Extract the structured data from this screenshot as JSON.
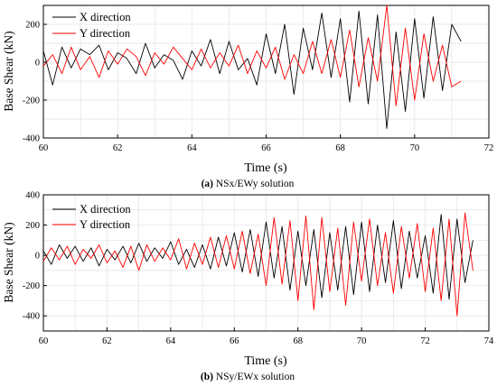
{
  "chart_data": [
    {
      "type": "line",
      "panel_label": "(a)",
      "caption": "NSx/EWy solution",
      "xlabel": "Time (s)",
      "ylabel": "Base Shear (kN)",
      "xlim": [
        60,
        72
      ],
      "ylim": [
        -400,
        300
      ],
      "xticks": [
        60,
        62,
        64,
        66,
        68,
        70,
        72
      ],
      "yticks": [
        -400,
        -200,
        0,
        200
      ],
      "grid": true,
      "legend_position": "top-left",
      "x_range_data": [
        60,
        71.25
      ],
      "series": [
        {
          "name": "X direction",
          "color": "#000000",
          "x": [
            60.0,
            60.25,
            60.5,
            60.75,
            61.0,
            61.25,
            61.5,
            61.75,
            62.0,
            62.25,
            62.5,
            62.75,
            63.0,
            63.25,
            63.5,
            63.75,
            64.0,
            64.25,
            64.5,
            64.75,
            65.0,
            65.25,
            65.5,
            65.75,
            66.0,
            66.25,
            66.5,
            66.75,
            67.0,
            67.25,
            67.5,
            67.75,
            68.0,
            68.25,
            68.5,
            68.75,
            69.0,
            69.25,
            69.5,
            69.75,
            70.0,
            70.25,
            70.5,
            70.75,
            71.0,
            71.25
          ],
          "values": [
            60,
            -120,
            80,
            -30,
            70,
            40,
            90,
            -40,
            50,
            20,
            -60,
            100,
            -30,
            40,
            10,
            -90,
            60,
            -20,
            120,
            -60,
            110,
            -40,
            20,
            -120,
            150,
            -60,
            200,
            -170,
            180,
            -40,
            260,
            -80,
            230,
            -210,
            270,
            -220,
            250,
            -350,
            160,
            -260,
            230,
            -190,
            240,
            -150,
            200,
            110
          ]
        },
        {
          "name": "Y direction",
          "color": "#ff0000",
          "x": [
            60.0,
            60.25,
            60.5,
            60.75,
            61.0,
            61.25,
            61.5,
            61.75,
            62.0,
            62.25,
            62.5,
            62.75,
            63.0,
            63.25,
            63.5,
            63.75,
            64.0,
            64.25,
            64.5,
            64.75,
            65.0,
            65.25,
            65.5,
            65.75,
            66.0,
            66.25,
            66.5,
            66.75,
            67.0,
            67.25,
            67.5,
            67.75,
            68.0,
            68.25,
            68.5,
            68.75,
            69.0,
            69.25,
            69.5,
            69.75,
            70.0,
            70.25,
            70.5,
            70.75,
            71.0,
            71.25
          ],
          "values": [
            -20,
            40,
            -60,
            80,
            -40,
            30,
            -80,
            60,
            -10,
            70,
            30,
            -70,
            50,
            -10,
            80,
            20,
            -40,
            70,
            -30,
            50,
            -20,
            90,
            -60,
            60,
            -30,
            80,
            -90,
            40,
            -60,
            110,
            -60,
            120,
            -80,
            170,
            -130,
            130,
            -100,
            300,
            -230,
            180,
            -200,
            150,
            -100,
            90,
            -130,
            -100
          ]
        }
      ]
    },
    {
      "type": "line",
      "panel_label": "(b)",
      "caption": "NSy/EWx solution",
      "xlabel": "Time (s)",
      "ylabel": "Base Shear (kN)",
      "xlim": [
        60,
        74
      ],
      "ylim": [
        -500,
        400
      ],
      "xticks": [
        60,
        62,
        64,
        66,
        68,
        70,
        72,
        74
      ],
      "yticks": [
        -400,
        -200,
        0,
        200,
        400
      ],
      "grid": true,
      "legend_position": "top-left",
      "x_range_data": [
        60,
        73.5
      ],
      "series": [
        {
          "name": "X direction",
          "color": "#000000",
          "x": [
            60.0,
            60.25,
            60.5,
            60.75,
            61.0,
            61.25,
            61.5,
            61.75,
            62.0,
            62.25,
            62.5,
            62.75,
            63.0,
            63.25,
            63.5,
            63.75,
            64.0,
            64.25,
            64.5,
            64.75,
            65.0,
            65.25,
            65.5,
            65.75,
            66.0,
            66.25,
            66.5,
            66.75,
            67.0,
            67.25,
            67.5,
            67.75,
            68.0,
            68.25,
            68.5,
            68.75,
            69.0,
            69.25,
            69.5,
            69.75,
            70.0,
            70.25,
            70.5,
            70.75,
            71.0,
            71.25,
            71.5,
            71.75,
            72.0,
            72.25,
            72.5,
            72.75,
            73.0,
            73.25,
            73.5
          ],
          "values": [
            30,
            -60,
            70,
            -20,
            60,
            -40,
            50,
            -70,
            40,
            -30,
            60,
            -50,
            80,
            -40,
            50,
            -20,
            90,
            -60,
            40,
            -80,
            70,
            -90,
            120,
            -70,
            150,
            -110,
            170,
            -140,
            220,
            -150,
            190,
            -230,
            160,
            -200,
            170,
            -280,
            150,
            -230,
            190,
            -260,
            220,
            -240,
            200,
            -180,
            230,
            -220,
            160,
            -150,
            130,
            -250,
            270,
            -290,
            240,
            -180,
            100
          ]
        },
        {
          "name": "Y direction",
          "color": "#ff0000",
          "x": [
            60.0,
            60.25,
            60.5,
            60.75,
            61.0,
            61.25,
            61.5,
            61.75,
            62.0,
            62.25,
            62.5,
            62.75,
            63.0,
            63.25,
            63.5,
            63.75,
            64.0,
            64.25,
            64.5,
            64.75,
            65.0,
            65.25,
            65.5,
            65.75,
            66.0,
            66.25,
            66.5,
            66.75,
            67.0,
            67.25,
            67.5,
            67.75,
            68.0,
            68.25,
            68.5,
            68.75,
            69.0,
            69.25,
            69.5,
            69.75,
            70.0,
            70.25,
            70.5,
            70.75,
            71.0,
            71.25,
            71.5,
            71.75,
            72.0,
            72.25,
            72.5,
            72.75,
            73.0,
            73.25,
            73.5
          ],
          "values": [
            -40,
            50,
            -30,
            60,
            -60,
            40,
            -20,
            70,
            -50,
            30,
            -80,
            60,
            -100,
            70,
            -40,
            50,
            -30,
            110,
            -90,
            80,
            -60,
            120,
            -80,
            130,
            -90,
            160,
            -120,
            140,
            -200,
            250,
            -190,
            230,
            -300,
            260,
            -360,
            250,
            -240,
            180,
            -330,
            220,
            -170,
            240,
            -200,
            150,
            -250,
            190,
            -150,
            210,
            -240,
            180,
            -300,
            240,
            -400,
            280,
            -100
          ]
        }
      ]
    }
  ]
}
